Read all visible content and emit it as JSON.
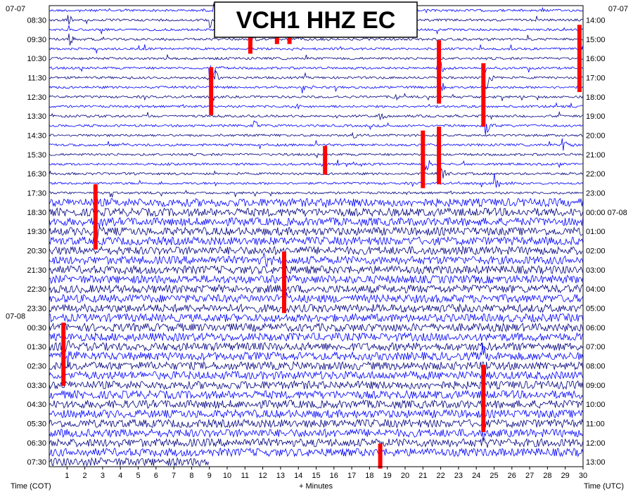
{
  "chart_data": {
    "type": "line",
    "title": "VCH1 HHZ EC",
    "xlabel": "+ Minutes",
    "left_axis_label": "Time (COT)",
    "right_axis_label": "Time (UTC)",
    "xlim": [
      0,
      30
    ],
    "x_ticks": [
      "1",
      "2",
      "3",
      "4",
      "5",
      "6",
      "7",
      "8",
      "9",
      "10",
      "11",
      "12",
      "13",
      "14",
      "15",
      "16",
      "17",
      "18",
      "19",
      "20",
      "21",
      "22",
      "23",
      "24",
      "25",
      "26",
      "27",
      "28",
      "29",
      "30"
    ],
    "left_date_labels": [
      {
        "text": "07-07",
        "hour": 8.0
      },
      {
        "text": "07-08",
        "hour": 24.0
      }
    ],
    "right_date_labels": [
      {
        "text": "07-07",
        "hour": 8.0
      }
    ],
    "left_tick_labels": [
      "08:30",
      "09:30",
      "10:30",
      "11:30",
      "12:30",
      "13:30",
      "14:30",
      "15:30",
      "16:30",
      "17:30",
      "18:30",
      "19:30",
      "20:30",
      "21:30",
      "22:30",
      "23:30",
      "00:30",
      "01:30",
      "02:30",
      "03:30",
      "04:30",
      "05:30",
      "06:30",
      "07:30"
    ],
    "right_tick_labels": [
      "14:00",
      "15:00",
      "16:00",
      "17:00",
      "18:00",
      "19:00",
      "20:00",
      "21:00",
      "22:00",
      "23:00",
      "00:00 07-08",
      "01:00",
      "02:00",
      "03:00",
      "04:00",
      "05:00",
      "06:00",
      "07:00",
      "08:00",
      "09:00",
      "10:00",
      "11:00",
      "12:00",
      "13:00"
    ],
    "traces": {
      "count": 48,
      "minutes_per_trace": 30,
      "start": "08:00 COT",
      "last_trace_minutes": 9,
      "colors": [
        "#0000ff",
        "#000080"
      ],
      "quiet_traces": 20
    },
    "events": [
      {
        "trace": 1,
        "minute": 9.0,
        "amp": 1.3
      },
      {
        "trace": 0,
        "minute": 9.2,
        "amp": 1.0
      },
      {
        "trace": 1,
        "minute": 1.0,
        "amp": 0.8
      },
      {
        "trace": 2,
        "minute": 11.2,
        "amp": 2.2
      },
      {
        "trace": 3,
        "minute": 11.3,
        "amp": 1.5
      },
      {
        "trace": 2,
        "minute": 13.0,
        "amp": 1.0
      },
      {
        "trace": 3,
        "minute": 1.1,
        "amp": 0.9
      },
      {
        "trace": 4,
        "minute": 29.8,
        "amp": 2.0
      },
      {
        "trace": 6,
        "minute": 9.0,
        "amp": 2.5
      },
      {
        "trace": 7,
        "minute": 9.2,
        "amp": 1.5
      },
      {
        "trace": 6,
        "minute": 21.8,
        "amp": 2.0
      },
      {
        "trace": 7,
        "minute": 24.5,
        "amp": 2.2
      },
      {
        "trace": 8,
        "minute": 21.9,
        "amp": 1.2
      },
      {
        "trace": 8,
        "minute": 14.2,
        "amp": 0.9
      },
      {
        "trace": 9,
        "minute": 19.3,
        "amp": 0.9
      },
      {
        "trace": 10,
        "minute": 13.8,
        "amp": 0.8
      },
      {
        "trace": 11,
        "minute": 18.5,
        "amp": 0.8
      },
      {
        "trace": 12,
        "minute": 24.5,
        "amp": 1.4
      },
      {
        "trace": 12,
        "minute": 11.5,
        "amp": 0.8
      },
      {
        "trace": 13,
        "minute": 17.0,
        "amp": 0.7
      },
      {
        "trace": 14,
        "minute": 28.8,
        "amp": 1.1
      },
      {
        "trace": 16,
        "minute": 21.0,
        "amp": 1.8
      },
      {
        "trace": 17,
        "minute": 21.8,
        "amp": 2.2
      },
      {
        "trace": 18,
        "minute": 25.0,
        "amp": 1.0
      },
      {
        "trace": 20,
        "minute": 15.5,
        "amp": 1.0
      },
      {
        "trace": 22,
        "minute": 2.5,
        "amp": 2.0
      },
      {
        "trace": 23,
        "minute": 2.6,
        "amp": 1.2
      },
      {
        "trace": 26,
        "minute": 12.0,
        "amp": 1.0
      },
      {
        "trace": 30,
        "minute": 13.2,
        "amp": 1.4
      },
      {
        "trace": 35,
        "minute": 0.8,
        "amp": 1.5
      },
      {
        "trace": 36,
        "minute": 1.0,
        "amp": 1.3
      },
      {
        "trace": 36,
        "minute": 24.3,
        "amp": 1.6
      },
      {
        "trace": 37,
        "minute": 24.5,
        "amp": 1.2
      },
      {
        "trace": 44,
        "minute": 24.3,
        "amp": 1.4
      },
      {
        "trace": 45,
        "minute": 24.3,
        "amp": 1.0
      }
    ],
    "clip_marks": [
      {
        "minute": 9.1,
        "from_hour": 11.2,
        "to_hour": 13.7
      },
      {
        "minute": 11.3,
        "from_hour": 8.5,
        "to_hour": 10.5
      },
      {
        "minute": 12.8,
        "from_hour": 8.9,
        "to_hour": 10.0
      },
      {
        "minute": 13.5,
        "from_hour": 9.3,
        "to_hour": 10.0
      },
      {
        "minute": 21.9,
        "from_hour": 9.8,
        "to_hour": 13.1
      },
      {
        "minute": 24.4,
        "from_hour": 11.0,
        "to_hour": 14.3
      },
      {
        "minute": 29.8,
        "from_hour": 9.0,
        "to_hour": 12.5
      },
      {
        "minute": 21.0,
        "from_hour": 14.5,
        "to_hour": 17.5
      },
      {
        "minute": 21.9,
        "from_hour": 14.3,
        "to_hour": 17.3
      },
      {
        "minute": 15.5,
        "from_hour": 15.3,
        "to_hour": 16.8
      },
      {
        "minute": 2.6,
        "from_hour": 17.3,
        "to_hour": 20.7
      },
      {
        "minute": 13.2,
        "from_hour": 20.8,
        "to_hour": 24.0
      },
      {
        "minute": 0.8,
        "from_hour": 24.5,
        "to_hour": 27.8
      },
      {
        "minute": 24.4,
        "from_hour": 26.7,
        "to_hour": 30.2
      },
      {
        "minute": 18.6,
        "from_hour": 30.8,
        "to_hour": 32.1
      }
    ],
    "colors": {
      "trace_light": "#0000ff",
      "trace_dark": "#000080",
      "clip": "#ff0000",
      "frame": "#000000",
      "title_box": "#ffffff"
    }
  }
}
